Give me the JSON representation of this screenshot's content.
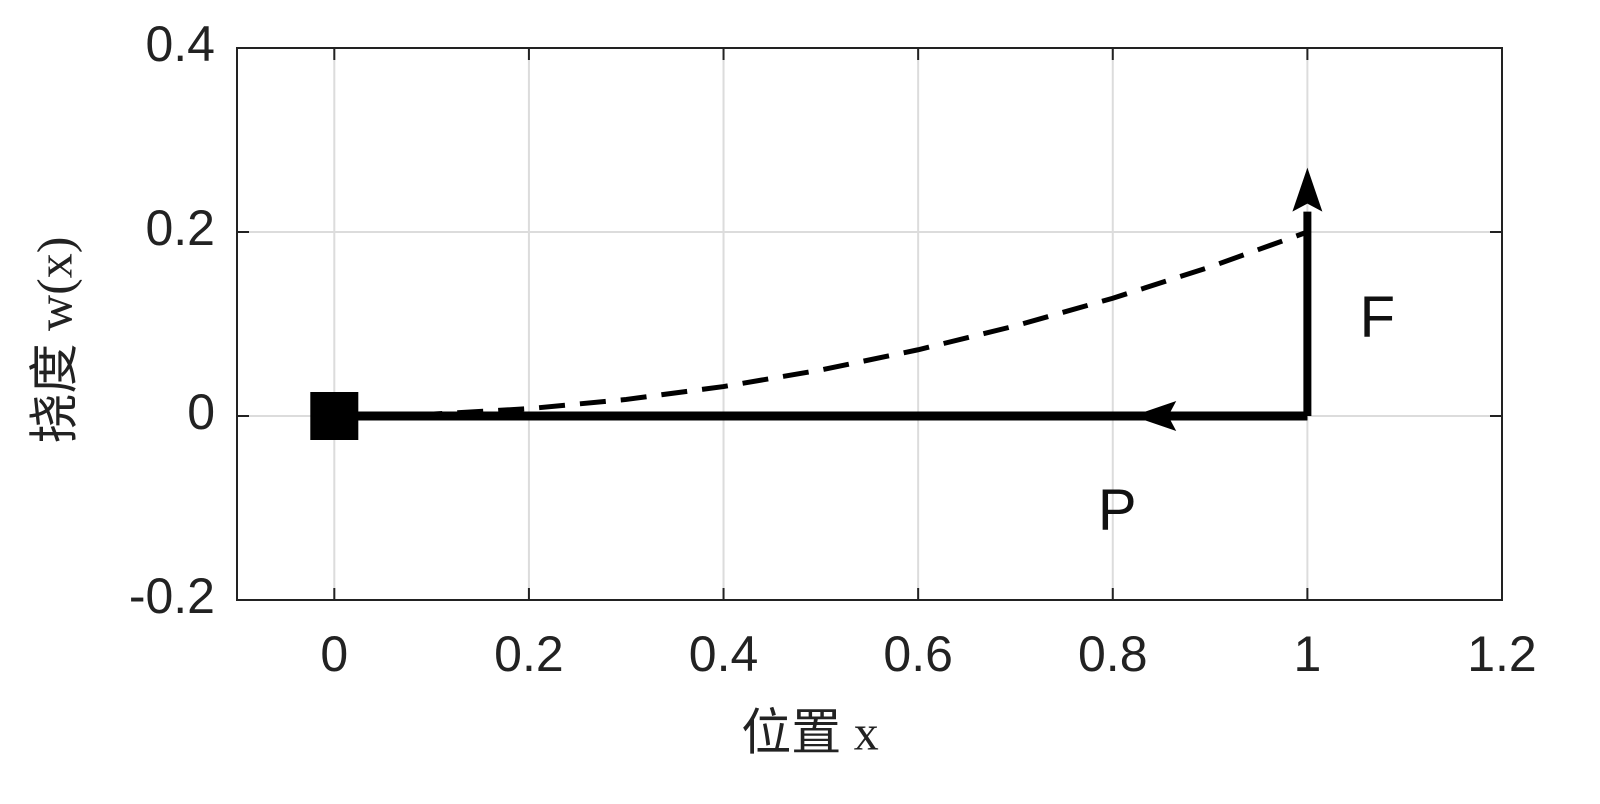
{
  "chart_data": {
    "type": "line",
    "xlabel": "位置 x",
    "ylabel": "挠度 w(x)",
    "xlim": [
      -0.1,
      1.2
    ],
    "xticks": [
      0,
      0.2,
      0.4,
      0.6,
      0.8,
      1,
      1.2
    ],
    "ylim": [
      -0.2,
      0.4
    ],
    "yticks": [
      -0.2,
      0,
      0.2,
      0.4
    ],
    "grid": true,
    "series": [
      {
        "color": "#000000",
        "style": "solid",
        "x": [
          0,
          1
        ],
        "values": [
          0,
          0
        ]
      },
      {
        "color": "#000000",
        "style": "dashed",
        "x": [
          0,
          0.1,
          0.2,
          0.3,
          0.4,
          0.5,
          0.6,
          0.7,
          0.8,
          0.9,
          1
        ],
        "values": [
          0,
          0.002,
          0.008,
          0.018,
          0.032,
          0.05,
          0.072,
          0.098,
          0.128,
          0.162,
          0.2
        ]
      }
    ],
    "markers": [
      {
        "shape": "square",
        "x": 0,
        "y": 0
      }
    ],
    "arrows": [
      {
        "label": "F",
        "from": [
          1,
          0
        ],
        "to": [
          1,
          0.27
        ]
      },
      {
        "label": "P",
        "from": [
          1,
          0
        ],
        "to": [
          0.82,
          0
        ]
      }
    ]
  }
}
